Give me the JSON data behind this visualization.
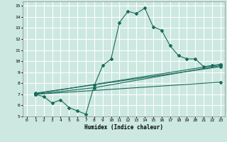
{
  "bg_color": "#cce8e0",
  "grid_color": "#ffffff",
  "line_color": "#1a6b5a",
  "xlabel": "Humidex (Indice chaleur)",
  "xlim": [
    -0.5,
    23.5
  ],
  "ylim": [
    5,
    15.4
  ],
  "yticks": [
    5,
    6,
    7,
    8,
    9,
    10,
    11,
    12,
    13,
    14,
    15
  ],
  "xticks": [
    0,
    1,
    2,
    3,
    4,
    5,
    6,
    7,
    8,
    9,
    10,
    11,
    12,
    13,
    14,
    15,
    16,
    17,
    18,
    19,
    20,
    21,
    22,
    23
  ],
  "line1_x": [
    1,
    2,
    3,
    4,
    5,
    6,
    7,
    8,
    9,
    10,
    11,
    12,
    13,
    14,
    15,
    16,
    17,
    18,
    19,
    20,
    21,
    22,
    23
  ],
  "line1_y": [
    7.0,
    6.8,
    6.2,
    6.5,
    5.8,
    5.5,
    5.2,
    7.8,
    9.6,
    10.2,
    13.5,
    14.5,
    14.3,
    14.8,
    13.1,
    12.8,
    11.4,
    10.5,
    10.2,
    10.2,
    9.5,
    9.6,
    9.7
  ],
  "line2_x": [
    1,
    8,
    23
  ],
  "line2_y": [
    7.0,
    7.6,
    9.6
  ],
  "line3_x": [
    1,
    23
  ],
  "line3_y": [
    7.1,
    9.5
  ],
  "line4_x": [
    1,
    23
  ],
  "line4_y": [
    7.0,
    8.1
  ],
  "line5_x": [
    1,
    23
  ],
  "line5_y": [
    7.05,
    9.7
  ]
}
